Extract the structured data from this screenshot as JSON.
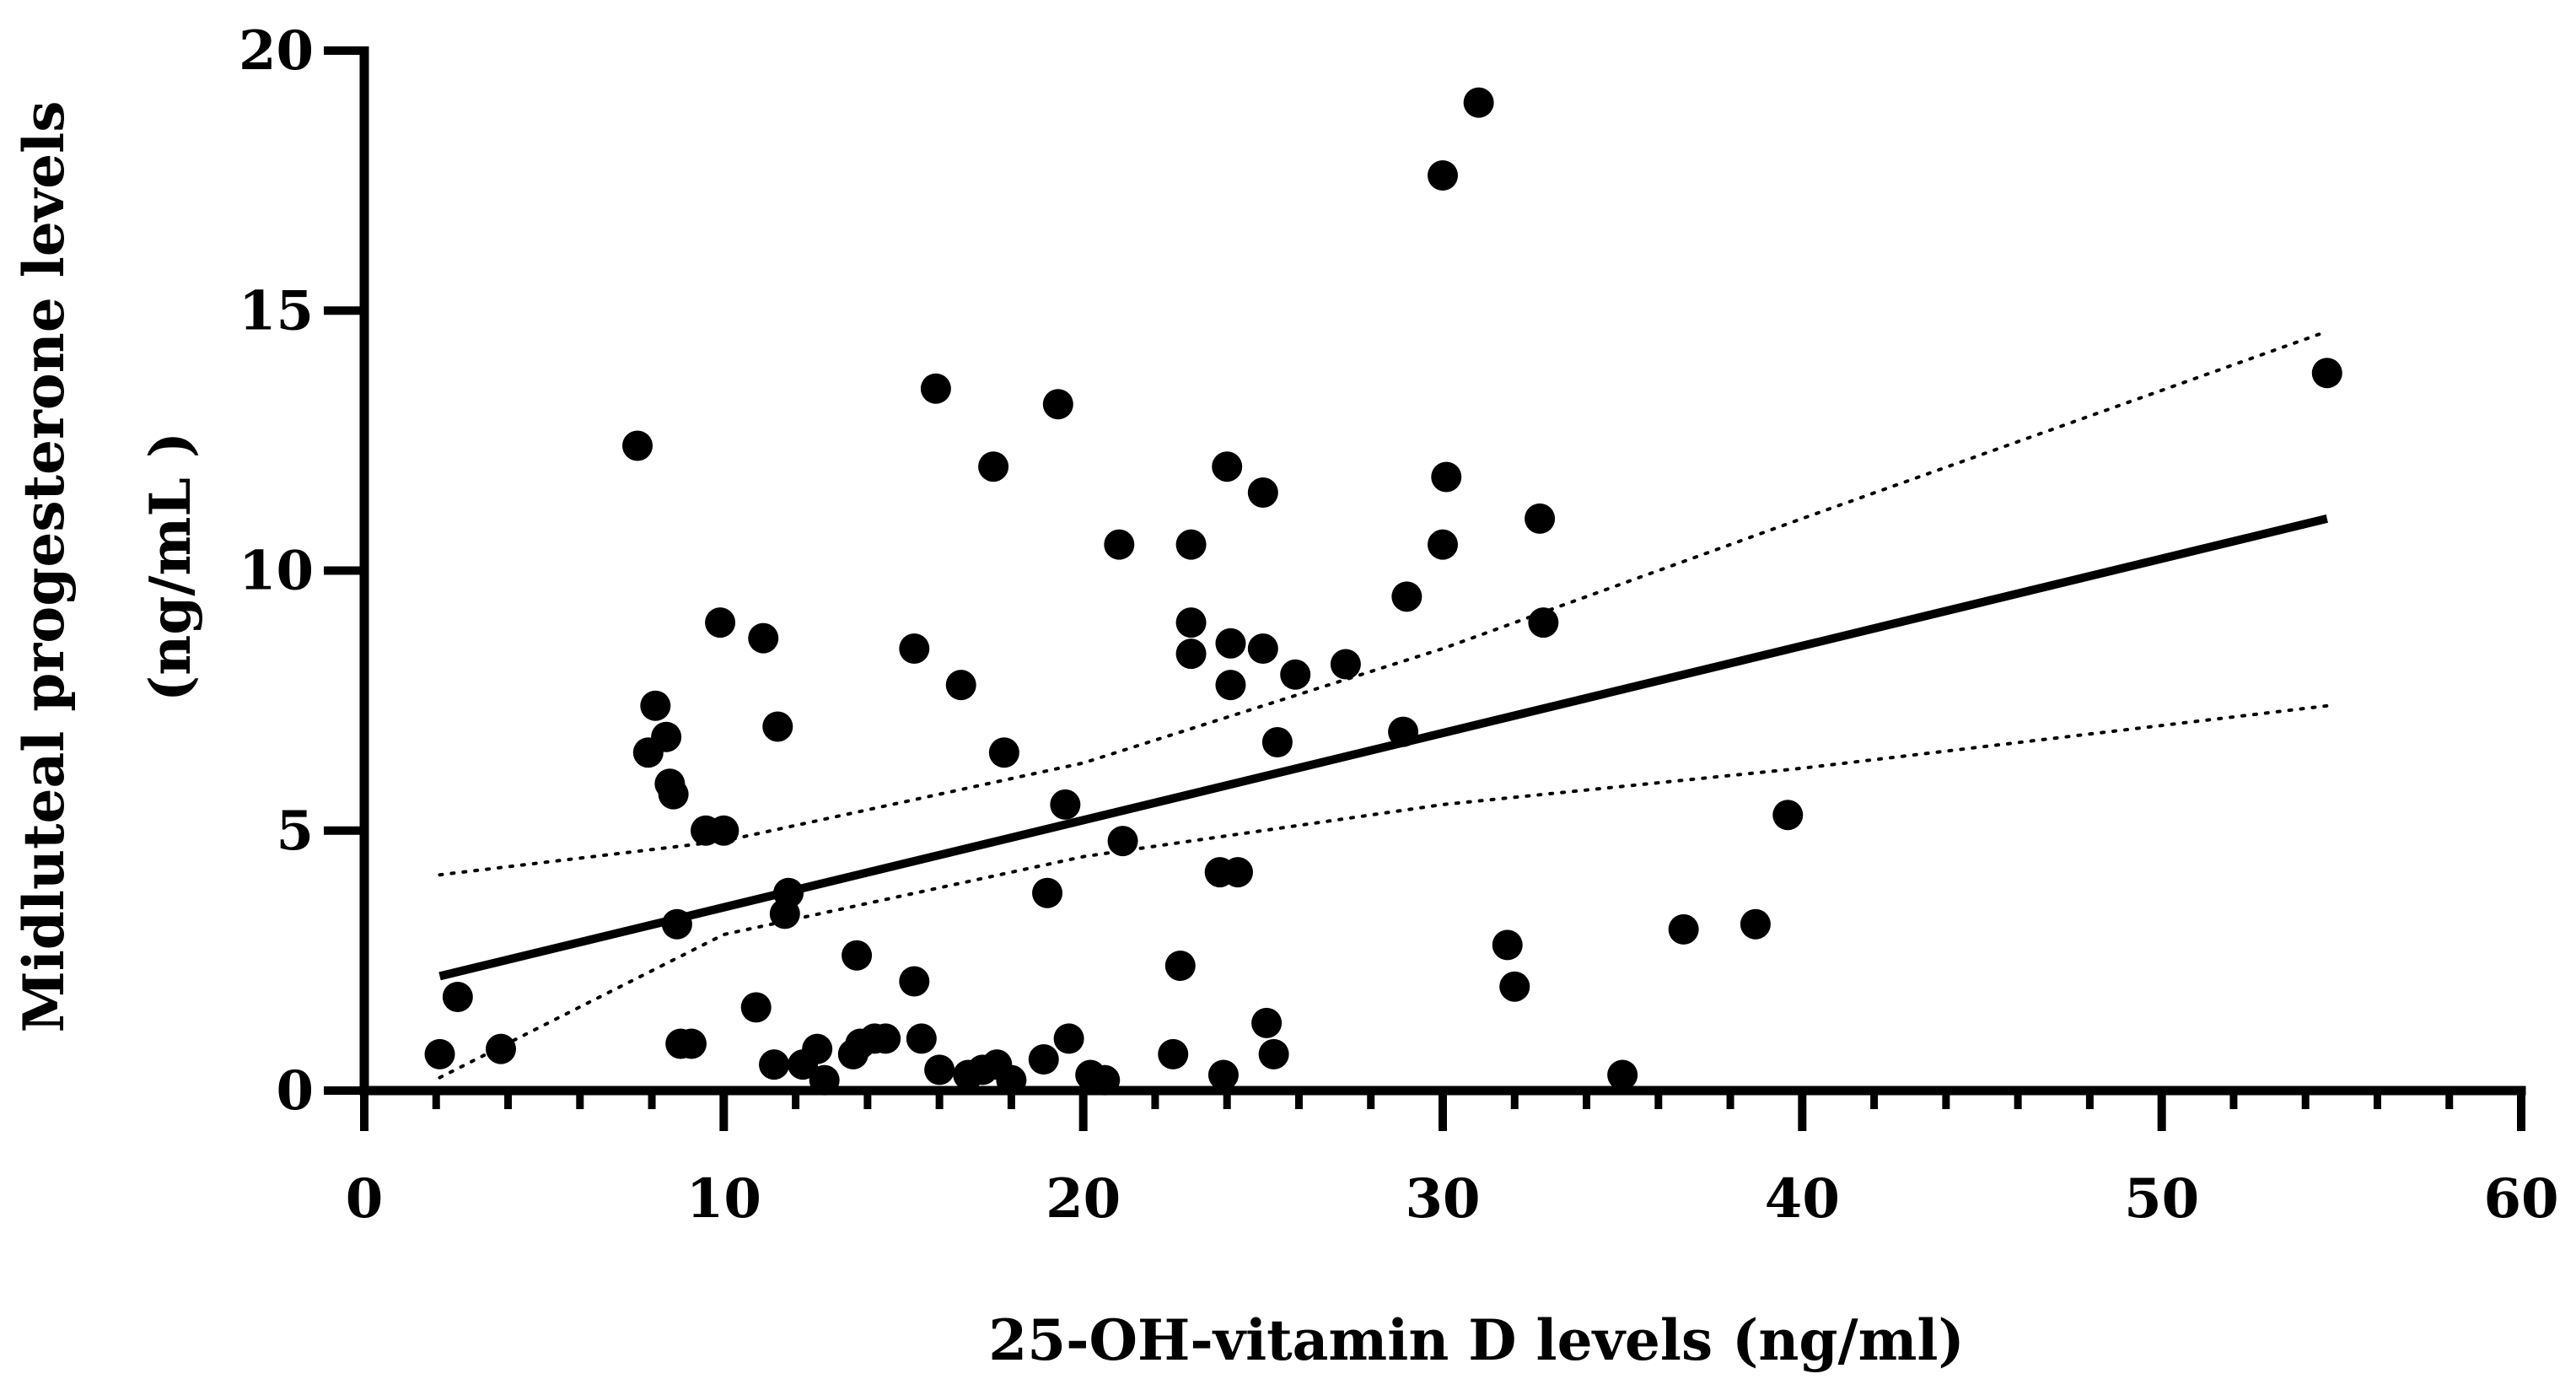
{
  "chart_data": {
    "type": "scatter",
    "title": "",
    "xlabel": "25-OH-vitamin D levels (ng/ml)",
    "ylabel_lines": [
      "Midluteal progesterone levels",
      "(ng/mL )"
    ],
    "xlim": [
      0,
      60
    ],
    "ylim": [
      0,
      20
    ],
    "x_ticks": [
      0,
      10,
      20,
      30,
      40,
      50,
      60
    ],
    "y_ticks": [
      0,
      5,
      10,
      15,
      20
    ],
    "x_tick_labels": [
      "0",
      "10",
      "20",
      "30",
      "40",
      "50",
      "60"
    ],
    "y_tick_labels": [
      "0",
      "5",
      "10",
      "15",
      "20"
    ],
    "x_minor_step": 2,
    "grid": false,
    "colors": {
      "points": "#000000",
      "line": "#000000",
      "axis": "#000000"
    },
    "points": [
      {
        "x": 2.1,
        "y": 0.7
      },
      {
        "x": 2.6,
        "y": 1.8
      },
      {
        "x": 3.8,
        "y": 0.8
      },
      {
        "x": 7.6,
        "y": 12.4
      },
      {
        "x": 7.9,
        "y": 6.5
      },
      {
        "x": 8.1,
        "y": 7.4
      },
      {
        "x": 8.4,
        "y": 6.8
      },
      {
        "x": 8.5,
        "y": 5.9
      },
      {
        "x": 8.6,
        "y": 5.7
      },
      {
        "x": 8.7,
        "y": 3.2
      },
      {
        "x": 8.8,
        "y": 0.9
      },
      {
        "x": 9.1,
        "y": 0.9
      },
      {
        "x": 9.5,
        "y": 5.0
      },
      {
        "x": 9.9,
        "y": 9.0
      },
      {
        "x": 10.0,
        "y": 5.0
      },
      {
        "x": 10.9,
        "y": 1.6
      },
      {
        "x": 11.1,
        "y": 8.7
      },
      {
        "x": 11.4,
        "y": 0.5
      },
      {
        "x": 11.5,
        "y": 7.0
      },
      {
        "x": 11.7,
        "y": 3.4
      },
      {
        "x": 11.8,
        "y": 3.8
      },
      {
        "x": 12.2,
        "y": 0.5
      },
      {
        "x": 12.6,
        "y": 0.8
      },
      {
        "x": 12.8,
        "y": 0.2
      },
      {
        "x": 13.6,
        "y": 0.7
      },
      {
        "x": 13.7,
        "y": 2.6
      },
      {
        "x": 13.8,
        "y": 0.9
      },
      {
        "x": 14.2,
        "y": 1.0
      },
      {
        "x": 14.5,
        "y": 1.0
      },
      {
        "x": 15.3,
        "y": 8.5
      },
      {
        "x": 15.3,
        "y": 2.1
      },
      {
        "x": 15.5,
        "y": 1.0
      },
      {
        "x": 15.9,
        "y": 13.5
      },
      {
        "x": 16.0,
        "y": 0.4
      },
      {
        "x": 16.6,
        "y": 7.8
      },
      {
        "x": 16.8,
        "y": 0.3
      },
      {
        "x": 17.2,
        "y": 0.4
      },
      {
        "x": 17.5,
        "y": 12.0
      },
      {
        "x": 17.6,
        "y": 0.5
      },
      {
        "x": 17.8,
        "y": 6.5
      },
      {
        "x": 18.0,
        "y": 0.2
      },
      {
        "x": 18.9,
        "y": 0.6
      },
      {
        "x": 19.0,
        "y": 3.8
      },
      {
        "x": 19.3,
        "y": 13.2
      },
      {
        "x": 19.5,
        "y": 5.5
      },
      {
        "x": 19.6,
        "y": 1.0
      },
      {
        "x": 20.2,
        "y": 0.3
      },
      {
        "x": 20.6,
        "y": 0.2
      },
      {
        "x": 21.0,
        "y": 10.5
      },
      {
        "x": 21.1,
        "y": 4.8
      },
      {
        "x": 22.5,
        "y": 0.7
      },
      {
        "x": 22.7,
        "y": 2.4
      },
      {
        "x": 23.0,
        "y": 10.5
      },
      {
        "x": 23.0,
        "y": 9.0
      },
      {
        "x": 23.0,
        "y": 8.4
      },
      {
        "x": 23.8,
        "y": 4.2
      },
      {
        "x": 23.9,
        "y": 0.3
      },
      {
        "x": 24.0,
        "y": 12.0
      },
      {
        "x": 24.1,
        "y": 8.6
      },
      {
        "x": 24.1,
        "y": 7.8
      },
      {
        "x": 24.3,
        "y": 4.2
      },
      {
        "x": 25.0,
        "y": 11.5
      },
      {
        "x": 25.0,
        "y": 8.5
      },
      {
        "x": 25.1,
        "y": 1.3
      },
      {
        "x": 25.3,
        "y": 0.7
      },
      {
        "x": 25.4,
        "y": 6.7
      },
      {
        "x": 25.9,
        "y": 8.0
      },
      {
        "x": 27.3,
        "y": 8.2
      },
      {
        "x": 28.9,
        "y": 6.9
      },
      {
        "x": 29.0,
        "y": 9.5
      },
      {
        "x": 30.0,
        "y": 17.6
      },
      {
        "x": 30.0,
        "y": 10.5
      },
      {
        "x": 30.1,
        "y": 11.8
      },
      {
        "x": 31.0,
        "y": 19.0
      },
      {
        "x": 31.8,
        "y": 2.8
      },
      {
        "x": 32.0,
        "y": 2.0
      },
      {
        "x": 32.7,
        "y": 11.0
      },
      {
        "x": 32.8,
        "y": 9.0
      },
      {
        "x": 35.0,
        "y": 0.3
      },
      {
        "x": 36.7,
        "y": 3.1
      },
      {
        "x": 38.7,
        "y": 3.2
      },
      {
        "x": 39.6,
        "y": 5.3
      },
      {
        "x": 54.6,
        "y": 13.8
      }
    ],
    "regression_line": {
      "x": [
        2.1,
        54.6
      ],
      "y": [
        2.2,
        11.0
      ]
    },
    "confidence_band": {
      "upper": {
        "x": [
          2.1,
          10,
          20,
          30,
          40,
          54.6
        ],
        "y": [
          4.15,
          4.8,
          6.3,
          8.5,
          11.0,
          14.6
        ]
      },
      "lower": {
        "x": [
          2.1,
          10,
          20,
          30,
          40,
          54.6
        ],
        "y": [
          0.25,
          3.0,
          4.5,
          5.5,
          6.2,
          7.4
        ]
      }
    }
  }
}
